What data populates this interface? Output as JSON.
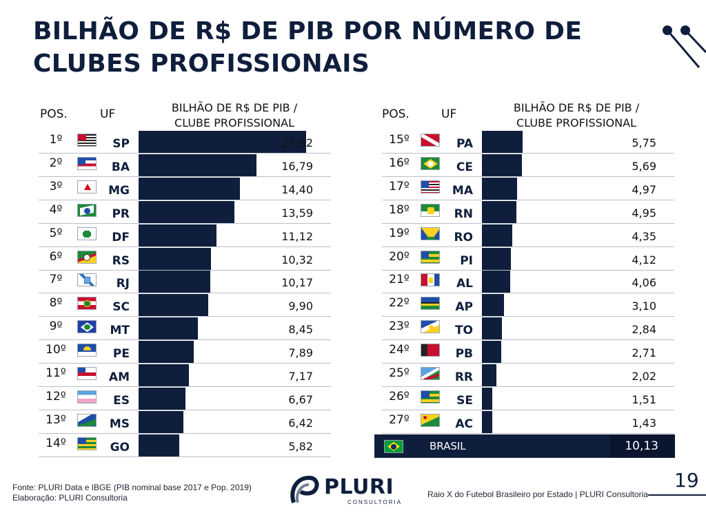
{
  "title": "BILHÃO DE R$ DE PIB POR NÚMERO DE CLUBES PROFISSIONAIS",
  "colors": {
    "bar": "#0f1e3c",
    "text": "#111111",
    "accent": "#0f1e3c"
  },
  "headers": {
    "pos": "POS.",
    "uf": "UF",
    "value_line1": "BILHÃO  DE R$ DE PIB /",
    "value_line2": "CLUBE PROFISSIONAL"
  },
  "chart_data": {
    "type": "bar",
    "orientation": "horizontal",
    "title": "BILHÃO DE R$ DE PIB POR NÚMERO DE CLUBES PROFISSIONAIS",
    "value_label": "BILHÃO  DE R$ DE PIB / CLUBE PROFISSIONAL",
    "xlim": [
      0,
      23.82
    ],
    "rows": [
      {
        "pos": "1º",
        "uf": "SP",
        "value": 23.82,
        "label": "23,82",
        "flag": "sao-paulo-flag"
      },
      {
        "pos": "2º",
        "uf": "BA",
        "value": 16.79,
        "label": "16,79",
        "flag": "bahia-flag"
      },
      {
        "pos": "3º",
        "uf": "MG",
        "value": 14.4,
        "label": "14,40",
        "flag": "minas-gerais-flag"
      },
      {
        "pos": "4º",
        "uf": "PR",
        "value": 13.59,
        "label": "13,59",
        "flag": "parana-flag"
      },
      {
        "pos": "5º",
        "uf": "DF",
        "value": 11.12,
        "label": "11,12",
        "flag": "distrito-federal-flag"
      },
      {
        "pos": "6º",
        "uf": "RS",
        "value": 10.32,
        "label": "10,32",
        "flag": "rio-grande-do-sul-flag"
      },
      {
        "pos": "7º",
        "uf": "RJ",
        "value": 10.17,
        "label": "10,17",
        "flag": "rio-de-janeiro-flag"
      },
      {
        "pos": "8º",
        "uf": "SC",
        "value": 9.9,
        "label": "9,90",
        "flag": "santa-catarina-flag"
      },
      {
        "pos": "9º",
        "uf": "MT",
        "value": 8.45,
        "label": "8,45",
        "flag": "mato-grosso-flag"
      },
      {
        "pos": "10º",
        "uf": "PE",
        "value": 7.89,
        "label": "7,89",
        "flag": "pernambuco-flag"
      },
      {
        "pos": "11º",
        "uf": "AM",
        "value": 7.17,
        "label": "7,17",
        "flag": "amazonas-flag"
      },
      {
        "pos": "12º",
        "uf": "ES",
        "value": 6.67,
        "label": "6,67",
        "flag": "espirito-santo-flag"
      },
      {
        "pos": "13º",
        "uf": "MS",
        "value": 6.42,
        "label": "6,42",
        "flag": "mato-grosso-do-sul-flag"
      },
      {
        "pos": "14º",
        "uf": "GO",
        "value": 5.82,
        "label": "5,82",
        "flag": "goias-flag"
      },
      {
        "pos": "15º",
        "uf": "PA",
        "value": 5.75,
        "label": "5,75",
        "flag": "para-flag"
      },
      {
        "pos": "16º",
        "uf": "CE",
        "value": 5.69,
        "label": "5,69",
        "flag": "ceara-flag"
      },
      {
        "pos": "17º",
        "uf": "MA",
        "value": 4.97,
        "label": "4,97",
        "flag": "maranhao-flag"
      },
      {
        "pos": "18º",
        "uf": "RN",
        "value": 4.95,
        "label": "4,95",
        "flag": "rio-grande-do-norte-flag"
      },
      {
        "pos": "19º",
        "uf": "RO",
        "value": 4.35,
        "label": "4,35",
        "flag": "rondonia-flag"
      },
      {
        "pos": "20º",
        "uf": "PI",
        "value": 4.12,
        "label": "4,12",
        "flag": "piaui-flag"
      },
      {
        "pos": "21º",
        "uf": "AL",
        "value": 4.06,
        "label": "4,06",
        "flag": "alagoas-flag"
      },
      {
        "pos": "22º",
        "uf": "AP",
        "value": 3.1,
        "label": "3,10",
        "flag": "amapa-flag"
      },
      {
        "pos": "23º",
        "uf": "TO",
        "value": 2.84,
        "label": "2,84",
        "flag": "tocantins-flag"
      },
      {
        "pos": "24º",
        "uf": "PB",
        "value": 2.71,
        "label": "2,71",
        "flag": "paraiba-flag"
      },
      {
        "pos": "25º",
        "uf": "RR",
        "value": 2.02,
        "label": "2,02",
        "flag": "roraima-flag"
      },
      {
        "pos": "26º",
        "uf": "SE",
        "value": 1.51,
        "label": "1,51",
        "flag": "sergipe-flag"
      },
      {
        "pos": "27º",
        "uf": "AC",
        "value": 1.43,
        "label": "1,43",
        "flag": "acre-flag"
      }
    ],
    "total": {
      "label": "BRASIL",
      "value": 10.13,
      "value_label": "10,13",
      "flag": "brasil-flag"
    }
  },
  "footer": {
    "source": "Fonte: PLURI Data e IBGE (PIB nominal base 2017 e Pop. 2019)",
    "credit": "Elaboração: PLURI Consultoria",
    "logo_name": "PLURI",
    "logo_sub": "CONSULTORIA",
    "right_text": "Raio X do Futebol Brasileiro por Estado | PLURI Consultoria",
    "page": "19"
  }
}
